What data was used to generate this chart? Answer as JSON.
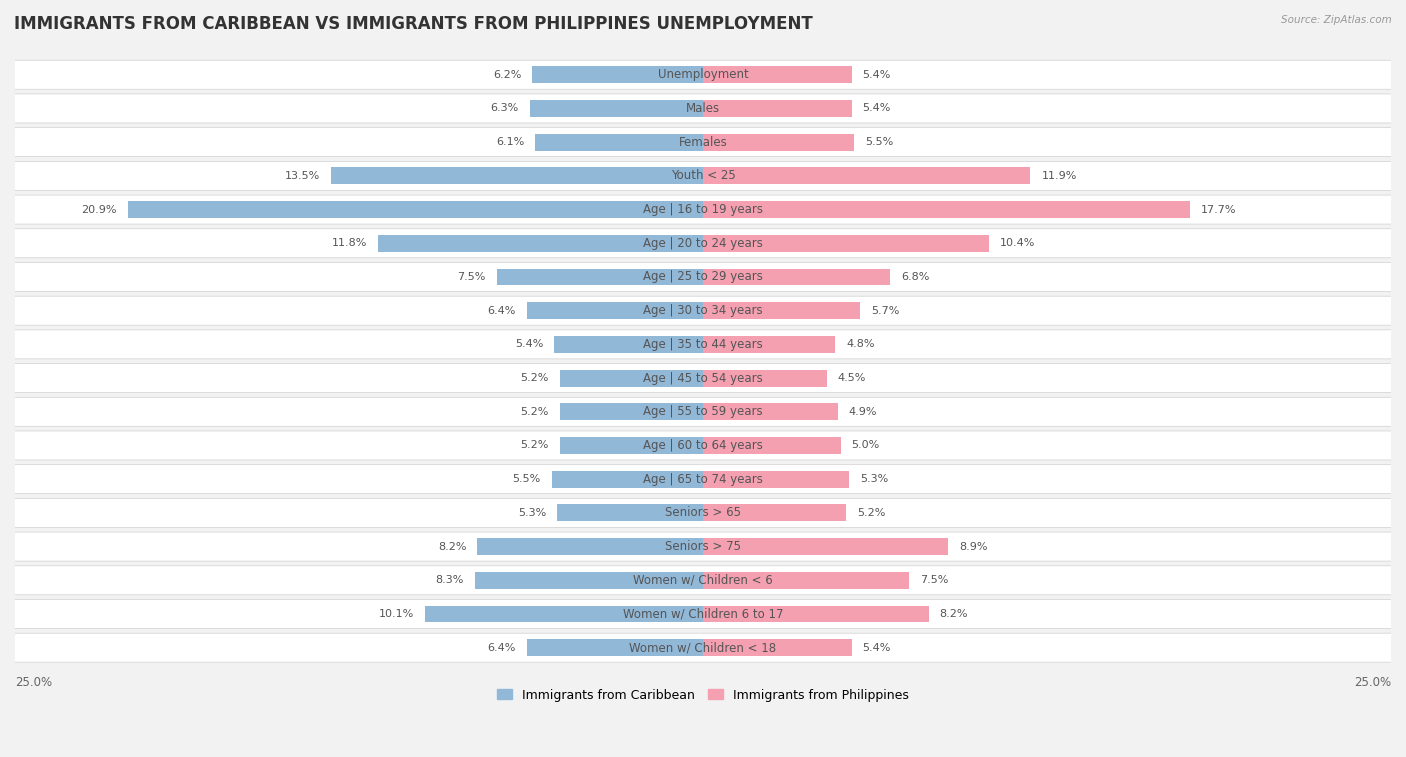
{
  "title": "IMMIGRANTS FROM CARIBBEAN VS IMMIGRANTS FROM PHILIPPINES UNEMPLOYMENT",
  "source": "Source: ZipAtlas.com",
  "categories": [
    "Unemployment",
    "Males",
    "Females",
    "Youth < 25",
    "Age | 16 to 19 years",
    "Age | 20 to 24 years",
    "Age | 25 to 29 years",
    "Age | 30 to 34 years",
    "Age | 35 to 44 years",
    "Age | 45 to 54 years",
    "Age | 55 to 59 years",
    "Age | 60 to 64 years",
    "Age | 65 to 74 years",
    "Seniors > 65",
    "Seniors > 75",
    "Women w/ Children < 6",
    "Women w/ Children 6 to 17",
    "Women w/ Children < 18"
  ],
  "caribbean_values": [
    6.2,
    6.3,
    6.1,
    13.5,
    20.9,
    11.8,
    7.5,
    6.4,
    5.4,
    5.2,
    5.2,
    5.2,
    5.5,
    5.3,
    8.2,
    8.3,
    10.1,
    6.4
  ],
  "philippines_values": [
    5.4,
    5.4,
    5.5,
    11.9,
    17.7,
    10.4,
    6.8,
    5.7,
    4.8,
    4.5,
    4.9,
    5.0,
    5.3,
    5.2,
    8.9,
    7.5,
    8.2,
    5.4
  ],
  "caribbean_color": "#92b8d8",
  "philippines_color": "#f4a0b0",
  "caribbean_label": "Immigrants from Caribbean",
  "philippines_label": "Immigrants from Philippines",
  "row_color_light": "#f2f2f2",
  "row_color_dark": "#e8e8e8",
  "xlim": 25.0,
  "title_fontsize": 12,
  "label_fontsize": 8.5,
  "value_fontsize": 8
}
